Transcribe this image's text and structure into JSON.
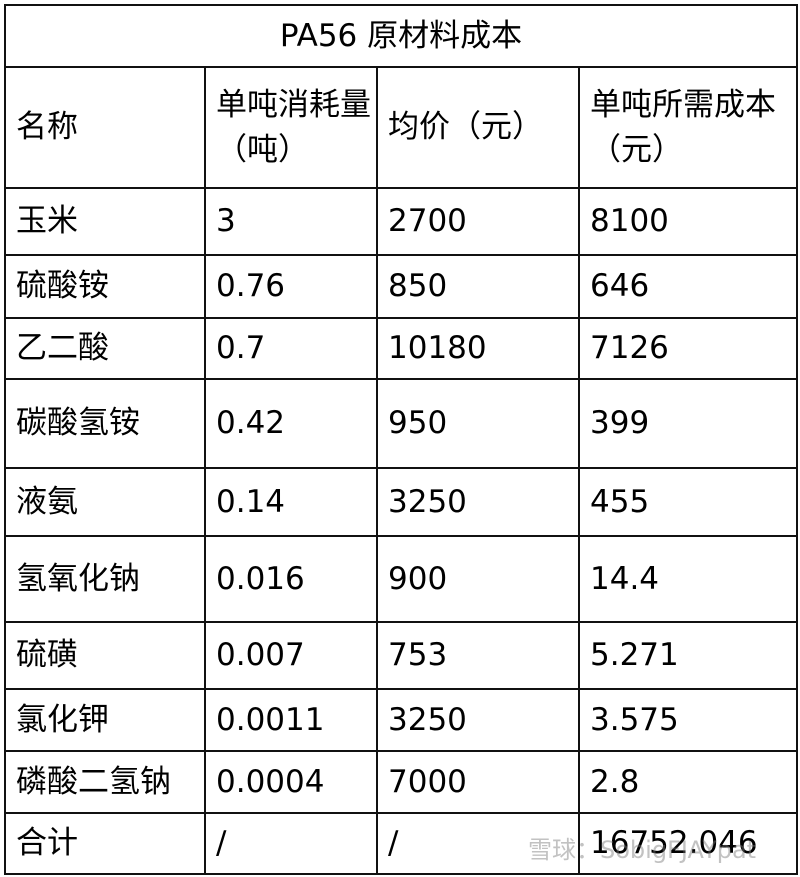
{
  "title": "PA56 原材料成本",
  "headers": [
    "名称",
    "单吨消耗量（吨）",
    "均价（元）",
    "单吨所需成本（元）"
  ],
  "rows": [
    [
      "玉米",
      "3",
      "2700",
      "8100"
    ],
    [
      "硫酸铵",
      "0.76",
      "850",
      "646"
    ],
    [
      "乙二酸",
      "0.7",
      "10180",
      "7126"
    ],
    [
      "碳酸氢铵",
      "0.42",
      "950",
      "399"
    ],
    [
      "液氨",
      "0.14",
      "3250",
      "455"
    ],
    [
      "氢氧化钠",
      "0.016",
      "900",
      "14.4"
    ],
    [
      "硫磺",
      "0.007",
      "753",
      "5.271"
    ],
    [
      "氯化钾",
      "0.0011",
      "3250",
      "3.575"
    ],
    [
      "磷酸二氢钠",
      "0.0004",
      "7000",
      "2.8"
    ],
    [
      "合计",
      "/",
      "/",
      "16752.046"
    ]
  ],
  "watermark": "雪球：SobigFJAYpat"
}
